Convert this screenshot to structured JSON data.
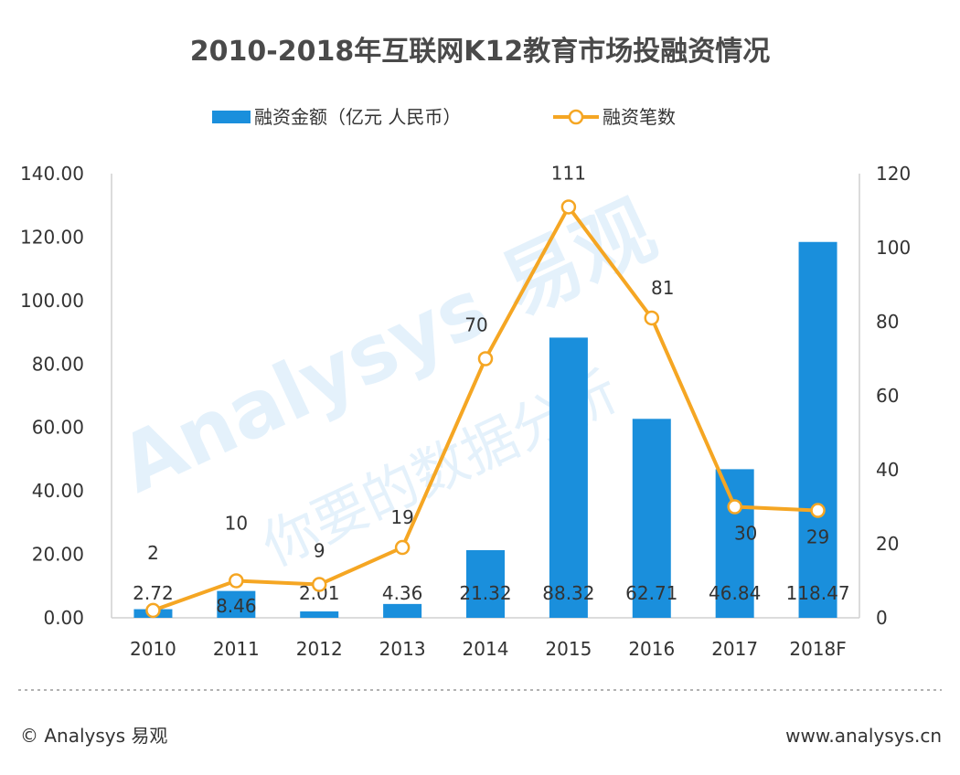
{
  "chart_data": {
    "type": "bar+line",
    "title": "2010-2018年互联网K12教育市场投融资情况",
    "categories": [
      "2010",
      "2011",
      "2012",
      "2013",
      "2014",
      "2015",
      "2016",
      "2017",
      "2018F"
    ],
    "series": [
      {
        "name": "融资金额（亿元 人民币）",
        "type": "bar",
        "axis": "left",
        "color": "#1a8fdc",
        "values": [
          2.72,
          8.46,
          2.01,
          4.36,
          21.32,
          88.32,
          62.71,
          46.84,
          118.47
        ],
        "labels": [
          "2.72",
          "8.46",
          "2.01",
          "4.36",
          "21.32",
          "88.32",
          "62.71",
          "46.84",
          "118.47"
        ]
      },
      {
        "name": "融资笔数",
        "type": "line",
        "axis": "right",
        "color": "#f5a623",
        "values": [
          2,
          10,
          9,
          19,
          70,
          111,
          81,
          30,
          29
        ],
        "labels": [
          "2",
          "10",
          "9",
          "19",
          "70",
          "111",
          "81",
          "30",
          "29"
        ]
      }
    ],
    "y_left": {
      "min": 0,
      "max": 140,
      "ticks": [
        "0.00",
        "20.00",
        "40.00",
        "60.00",
        "80.00",
        "100.00",
        "120.00",
        "140.00"
      ]
    },
    "y_right": {
      "min": 0,
      "max": 120,
      "ticks": [
        "0",
        "20",
        "40",
        "60",
        "80",
        "100",
        "120"
      ]
    },
    "legend_position": "top",
    "grid": false
  },
  "watermark": {
    "brand": "Analysys 易观",
    "tagline": "你要的数据分析"
  },
  "footer": {
    "left": "© Analysys 易观",
    "right": "www.analysys.cn"
  }
}
